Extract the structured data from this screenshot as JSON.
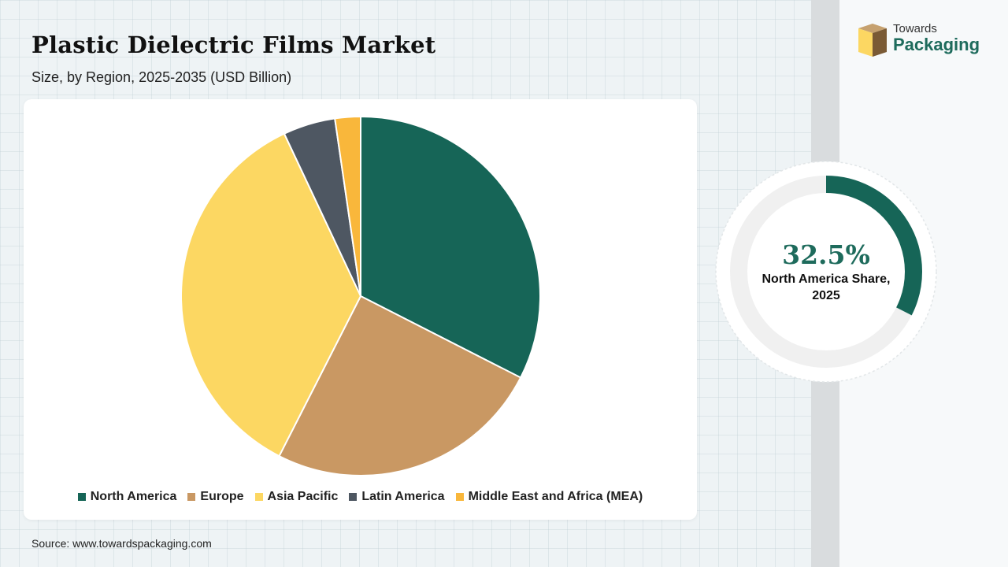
{
  "header": {
    "title": "Plastic Dielectric Films Market",
    "subtitle": "Size, by Region, 2025-2035 (USD Billion)"
  },
  "brand": {
    "line1": "Towards",
    "line2": "Packaging"
  },
  "chart_data": {
    "type": "pie",
    "categories": [
      "North America",
      "Europe",
      "Asia Pacific",
      "Latin America",
      "Middle East and Africa (MEA)"
    ],
    "values": [
      32.5,
      25.0,
      35.5,
      4.7,
      2.3
    ],
    "colors": [
      "#166557",
      "#c99863",
      "#fcd762",
      "#4e5762",
      "#f9b73b"
    ],
    "legend_position": "bottom"
  },
  "highlight": {
    "value_text": "32.5%",
    "value": 32.5,
    "label": "North America Share, 2025",
    "color": "#166557",
    "track_color": "#f0f0f0"
  },
  "footer": {
    "source": "Source: www.towardspackaging.com"
  }
}
